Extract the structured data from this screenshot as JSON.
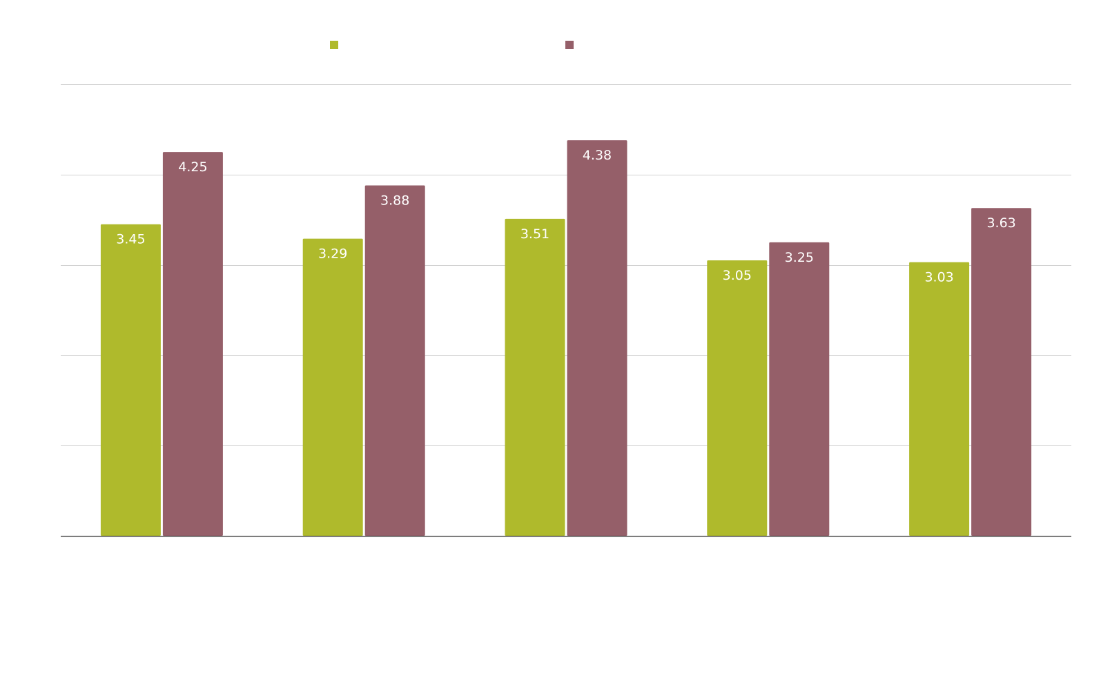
{
  "chart_data": {
    "type": "bar",
    "title": "",
    "xlabel": "",
    "ylabel": "",
    "ylim": [
      0,
      5
    ],
    "grid": true,
    "legend_position": "top-center",
    "categories": [
      "",
      "",
      "",
      "",
      ""
    ],
    "series": [
      {
        "name": "",
        "color": "#afba2c",
        "values": [
          3.45,
          3.29,
          3.51,
          3.05,
          3.03
        ]
      },
      {
        "name": "",
        "color": "#955f69",
        "values": [
          4.25,
          3.88,
          4.38,
          3.25,
          3.63
        ]
      }
    ],
    "data_labels": [
      [
        "3.45",
        "3.29",
        "3.51",
        "3.05",
        "3.03"
      ],
      [
        "4.25",
        "3.88",
        "4.38",
        "3.25",
        "3.63"
      ]
    ]
  }
}
